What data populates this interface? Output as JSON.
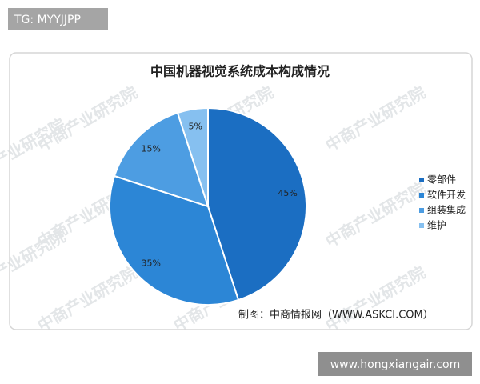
{
  "chart_data": {
    "type": "pie",
    "title": "中国机器视觉系统成本构成情况",
    "categories": [
      "零部件",
      "软件开发",
      "组装集成",
      "维护"
    ],
    "values": [
      45,
      35,
      15,
      5
    ],
    "value_labels": [
      "45%",
      "35%",
      "15%",
      "5%"
    ],
    "colors": [
      "#1b6ec2",
      "#2c86d6",
      "#4d9de2",
      "#86c0f0"
    ],
    "legend": "right",
    "source": "制图：中商情报网（WWW.ASKCI.COM）",
    "watermark": "中商产业研究院"
  },
  "overlay_top": "TG: MYYJJPP",
  "overlay_bottom": "www.hongxiangair.com"
}
